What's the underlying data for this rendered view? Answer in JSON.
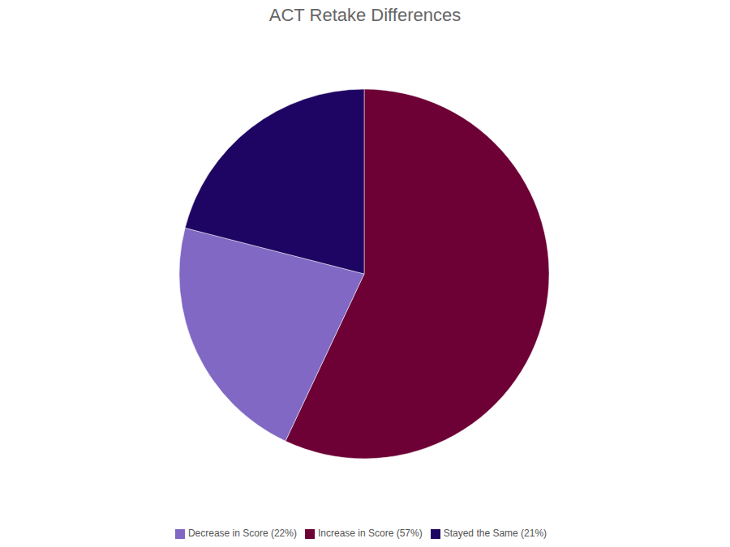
{
  "chart_data": {
    "type": "pie",
    "title": "ACT Retake Differences",
    "categories": [
      "Increase in Score (57%)",
      "Decrease in Score (22%)",
      "Stayed the Same (21%)"
    ],
    "values": [
      57,
      22,
      21
    ],
    "colors": [
      "#6d0035",
      "#8068c4",
      "#1f0563"
    ],
    "legend": "bottom"
  }
}
